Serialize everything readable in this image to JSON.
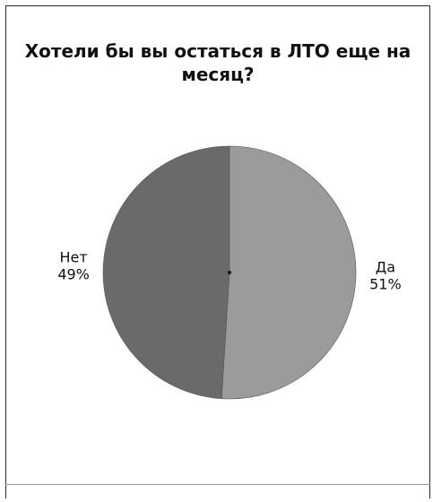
{
  "chart_data": {
    "type": "pie",
    "title": "Хотели бы вы остаться в ЛТО еще на месяц?",
    "slices": [
      {
        "label": "Да",
        "value": 51,
        "value_label": "51%",
        "color": "#9b9b9b"
      },
      {
        "label": "Нет",
        "value": 49,
        "value_label": "49%",
        "color": "#6a6a6a"
      }
    ],
    "legend": "none",
    "start_angle": "top",
    "direction": "clockwise"
  }
}
